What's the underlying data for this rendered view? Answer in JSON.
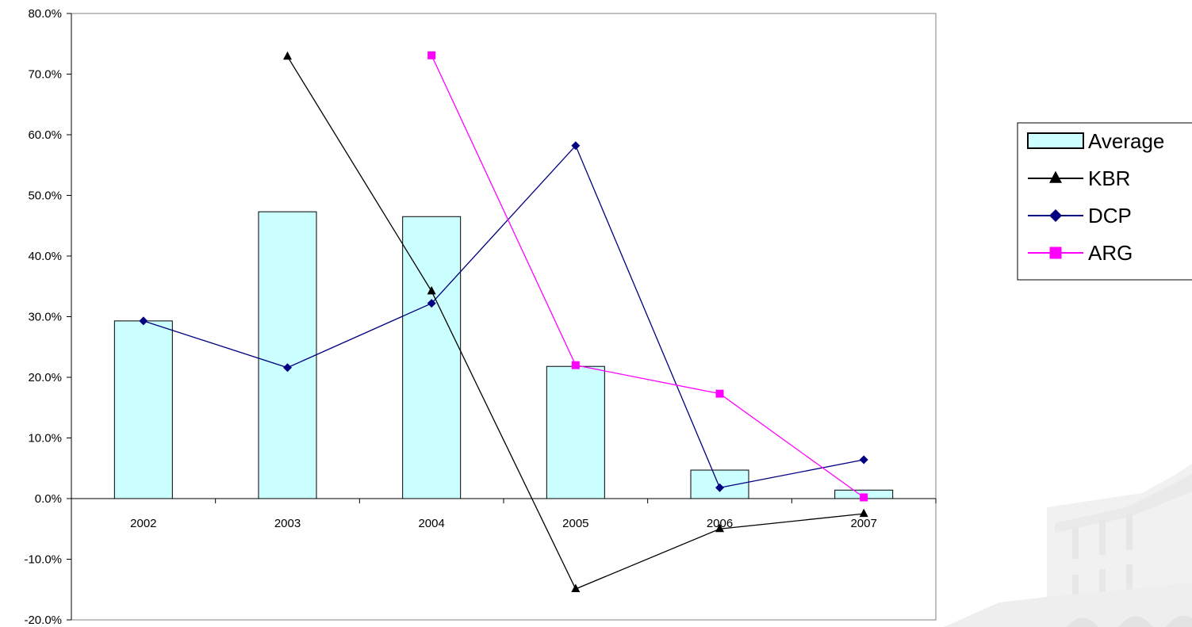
{
  "chart_data": {
    "type": "bar",
    "categories": [
      "2002",
      "2003",
      "2004",
      "2005",
      "2006",
      "2007"
    ],
    "ylim": [
      -20,
      80
    ],
    "yticks": [
      80,
      70,
      60,
      50,
      40,
      30,
      20,
      10,
      0,
      -10,
      -20
    ],
    "ytick_labels": [
      "80.0%",
      "70.0%",
      "60.0%",
      "50.0%",
      "40.0%",
      "30.0%",
      "20.0%",
      "10.0%",
      "0.0%",
      "-10.0%",
      "-20.0%"
    ],
    "grid": false,
    "legend_position": "right",
    "series": [
      {
        "name": "Average",
        "kind": "bar",
        "marker": "none",
        "color": "#ccffff",
        "edge_color": "#000000",
        "values": [
          29.3,
          47.3,
          46.5,
          21.8,
          4.7,
          1.4
        ]
      },
      {
        "name": "KBR",
        "kind": "line",
        "marker": "triangle",
        "color": "#000000",
        "values": [
          null,
          72.9,
          34.2,
          -14.9,
          -5.0,
          -2.5
        ]
      },
      {
        "name": "DCP",
        "kind": "line",
        "marker": "diamond",
        "color": "#000080",
        "values": [
          29.3,
          21.6,
          32.2,
          58.2,
          1.8,
          6.4
        ]
      },
      {
        "name": "ARG",
        "kind": "line",
        "marker": "square",
        "color": "#ff00ff",
        "values": [
          null,
          null,
          73.1,
          22.0,
          17.3,
          0.2
        ]
      }
    ]
  }
}
